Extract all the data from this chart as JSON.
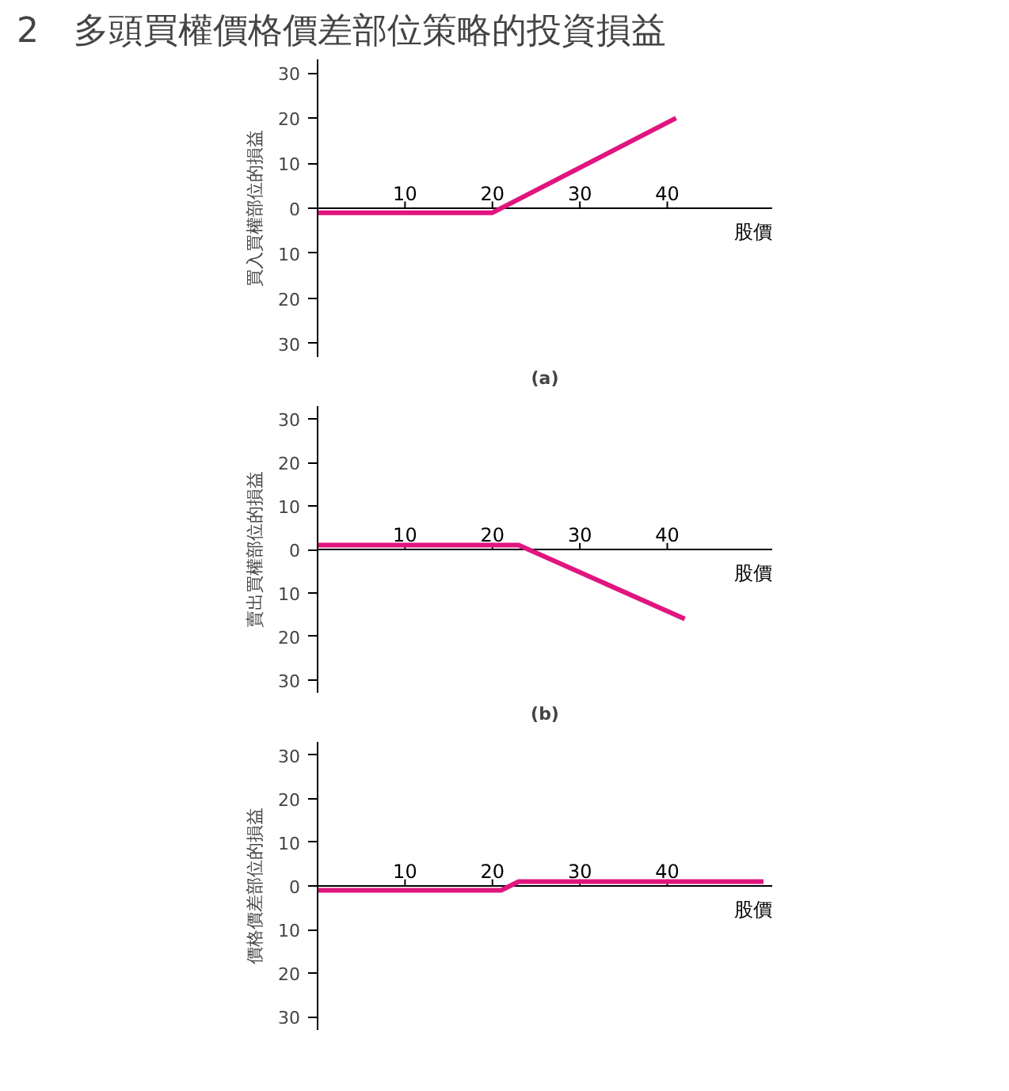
{
  "chart_data": [
    {
      "type": "line",
      "title": "2　多頭買權價格價差部位策略的投資損益",
      "ylabel": "買入買權部位的損益",
      "xlabel": "股價",
      "annotations": [
        "(a)"
      ],
      "x": [
        0,
        20,
        41
      ],
      "series": [
        {
          "color": "#e0157f",
          "values": [
            -1,
            -1,
            20
          ]
        }
      ],
      "xlim": [
        0,
        52
      ],
      "ylim": [
        -33,
        33
      ],
      "xticks": [
        10,
        20,
        30,
        40
      ],
      "yticks": [
        {
          "value": -30,
          "label": "30"
        },
        {
          "value": -20,
          "label": "20"
        },
        {
          "value": -10,
          "label": "10"
        },
        0,
        10,
        20,
        30
      ],
      "grid": false
    },
    {
      "type": "line",
      "ylabel": "賣出買權部位的損益",
      "xlabel": "股價",
      "annotations": [
        "(b)"
      ],
      "x": [
        0,
        23,
        42
      ],
      "series": [
        {
          "color": "#e0157f",
          "values": [
            1,
            1,
            -16
          ]
        }
      ],
      "xlim": [
        0,
        52
      ],
      "ylim": [
        -33,
        33
      ],
      "xticks": [
        10,
        20,
        30,
        40
      ],
      "yticks": [
        {
          "value": -30,
          "label": "30"
        },
        {
          "value": -20,
          "label": "20"
        },
        {
          "value": -10,
          "label": "10"
        },
        0,
        10,
        20,
        30
      ],
      "grid": false
    },
    {
      "type": "line",
      "ylabel": "價格價差部位的損益",
      "xlabel": "股價",
      "x": [
        0,
        21,
        23,
        51
      ],
      "series": [
        {
          "color": "#e0157f",
          "values": [
            -1,
            -1,
            1,
            1
          ]
        }
      ],
      "xlim": [
        0,
        52
      ],
      "ylim": [
        -33,
        33
      ],
      "xticks": [
        10,
        20,
        30,
        40
      ],
      "yticks": [
        {
          "value": -30,
          "label": "30"
        },
        {
          "value": -20,
          "label": "20"
        },
        {
          "value": -10,
          "label": "10"
        },
        0,
        10,
        20,
        30
      ],
      "grid": false
    }
  ]
}
